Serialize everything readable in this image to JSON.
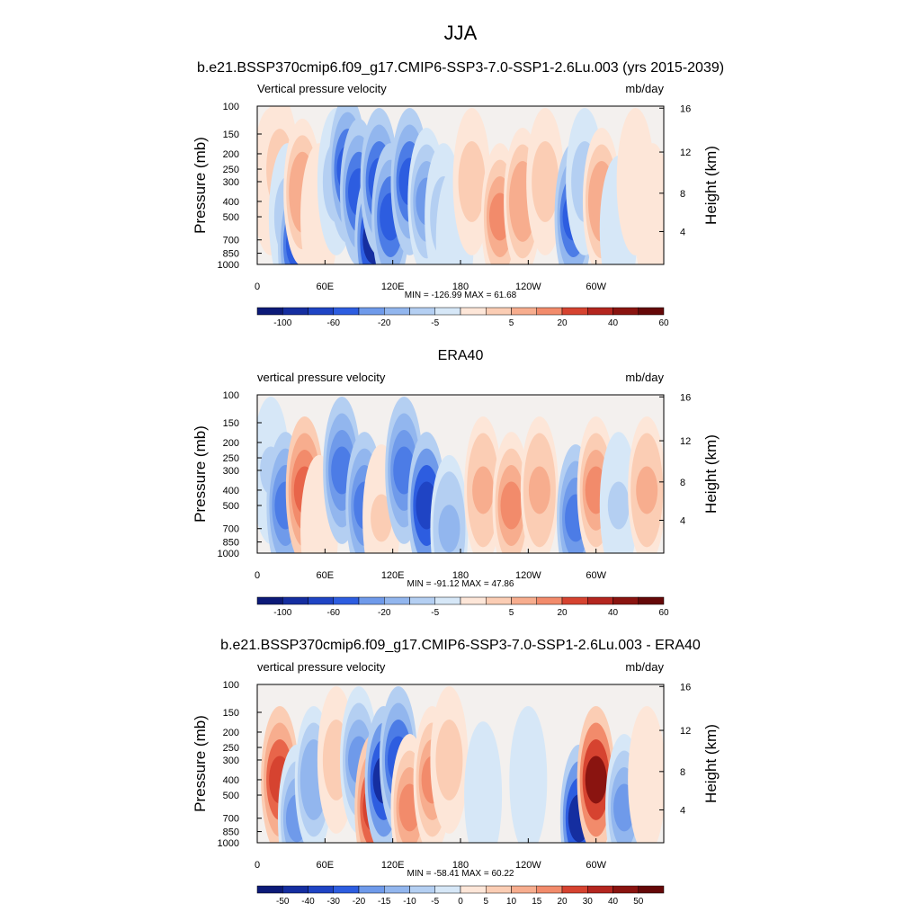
{
  "figure": {
    "title": "JJA"
  },
  "cbar_warm": [
    "#fde6d8",
    "#fbcdb4",
    "#f7ad8e",
    "#f28b6b",
    "#e8654a",
    "#d64330",
    "#b4261f",
    "#8a1410",
    "#650808"
  ],
  "cbar_cool": [
    "#d6e7f7",
    "#b4cff2",
    "#92b6ee",
    "#6f9aea",
    "#4c7ce6",
    "#2d5de0",
    "#1f44c4",
    "#152ea0",
    "#0c1a78"
  ],
  "chart_data": [
    {
      "type": "heatmap",
      "title": "b.e21.BSSP370cmip6.f09_g17.CMIP6-SSP3-7.0-SSP1-2.6Lu.003 (yrs 2015-2039)",
      "left_label": "Vertical pressure velocity",
      "right_label": "mb/day",
      "ylabel": "Pressure (mb)",
      "ylabel_right": "Height (km)",
      "yticks": [
        "100",
        "150",
        "200",
        "250",
        "300",
        "400",
        "500",
        "700",
        "850",
        "1000"
      ],
      "yticks_right": [
        "16",
        "12",
        "8",
        "4"
      ],
      "xticks": [
        "0",
        "60E",
        "120E",
        "180",
        "120W",
        "60W"
      ],
      "ylim": [
        1000,
        100
      ],
      "xlim": [
        0,
        360
      ],
      "stats": "MIN = -126.99  MAX =  61.68",
      "colorbar_labels": [
        "-100",
        "-60",
        "-20",
        "-5",
        "5",
        "20",
        "40",
        "60"
      ],
      "cells": [
        {
          "lon": 12,
          "p": 300,
          "v": 10
        },
        {
          "lon": 20,
          "p": 250,
          "v": 15
        },
        {
          "lon": 27,
          "p": 500,
          "v": -20
        },
        {
          "lon": 35,
          "p": 750,
          "v": -60
        },
        {
          "lon": 40,
          "p": 350,
          "v": 30
        },
        {
          "lon": 55,
          "p": 500,
          "v": 5
        },
        {
          "lon": 70,
          "p": 300,
          "v": -20
        },
        {
          "lon": 80,
          "p": 250,
          "v": -60
        },
        {
          "lon": 90,
          "p": 350,
          "v": -60
        },
        {
          "lon": 103,
          "p": 700,
          "v": -80
        },
        {
          "lon": 108,
          "p": 300,
          "v": -60
        },
        {
          "lon": 118,
          "p": 500,
          "v": -60
        },
        {
          "lon": 135,
          "p": 300,
          "v": -60
        },
        {
          "lon": 150,
          "p": 400,
          "v": -40
        },
        {
          "lon": 165,
          "p": 500,
          "v": -20
        },
        {
          "lon": 175,
          "p": 700,
          "v": -10
        },
        {
          "lon": 190,
          "p": 300,
          "v": 20
        },
        {
          "lon": 215,
          "p": 500,
          "v": 40
        },
        {
          "lon": 235,
          "p": 400,
          "v": 30
        },
        {
          "lon": 255,
          "p": 300,
          "v": 20
        },
        {
          "lon": 280,
          "p": 500,
          "v": -60
        },
        {
          "lon": 290,
          "p": 300,
          "v": -20
        },
        {
          "lon": 305,
          "p": 400,
          "v": 30
        },
        {
          "lon": 320,
          "p": 600,
          "v": -10
        },
        {
          "lon": 335,
          "p": 300,
          "v": 10
        },
        {
          "lon": 350,
          "p": 500,
          "v": 5
        }
      ]
    },
    {
      "type": "heatmap",
      "title": "ERA40",
      "left_label": "vertical pressure velocity",
      "right_label": "mb/day",
      "ylabel": "Pressure (mb)",
      "ylabel_right": "Height (km)",
      "yticks": [
        "100",
        "150",
        "200",
        "250",
        "300",
        "400",
        "500",
        "700",
        "850",
        "1000"
      ],
      "yticks_right": [
        "16",
        "12",
        "8",
        "4"
      ],
      "xticks": [
        "0",
        "60E",
        "120E",
        "180",
        "120W",
        "60W"
      ],
      "ylim": [
        1000,
        100
      ],
      "xlim": [
        0,
        360
      ],
      "stats": "MIN = -91.12  MAX =  47.86",
      "colorbar_labels": [
        "-100",
        "-60",
        "-20",
        "-5",
        "5",
        "20",
        "40",
        "60"
      ],
      "cells": [
        {
          "lon": 12,
          "p": 300,
          "v": -10
        },
        {
          "lon": 25,
          "p": 500,
          "v": -40
        },
        {
          "lon": 42,
          "p": 400,
          "v": 40
        },
        {
          "lon": 55,
          "p": 700,
          "v": 5
        },
        {
          "lon": 75,
          "p": 300,
          "v": -40
        },
        {
          "lon": 95,
          "p": 500,
          "v": -40
        },
        {
          "lon": 110,
          "p": 600,
          "v": 10
        },
        {
          "lon": 130,
          "p": 300,
          "v": -40
        },
        {
          "lon": 150,
          "p": 500,
          "v": -60
        },
        {
          "lon": 170,
          "p": 700,
          "v": -20
        },
        {
          "lon": 200,
          "p": 400,
          "v": 20
        },
        {
          "lon": 225,
          "p": 500,
          "v": 30
        },
        {
          "lon": 250,
          "p": 400,
          "v": 20
        },
        {
          "lon": 282,
          "p": 600,
          "v": -40
        },
        {
          "lon": 300,
          "p": 400,
          "v": 30
        },
        {
          "lon": 320,
          "p": 500,
          "v": -10
        },
        {
          "lon": 345,
          "p": 400,
          "v": 20
        }
      ]
    },
    {
      "type": "heatmap",
      "title": "b.e21.BSSP370cmip6.f09_g17.CMIP6-SSP3-7.0-SSP1-2.6Lu.003 - ERA40",
      "left_label": "vertical pressure velocity",
      "right_label": "mb/day",
      "ylabel": "Pressure (mb)",
      "ylabel_right": "Height (km)",
      "yticks": [
        "100",
        "150",
        "200",
        "250",
        "300",
        "400",
        "500",
        "700",
        "850",
        "1000"
      ],
      "yticks_right": [
        "16",
        "12",
        "8",
        "4"
      ],
      "xticks": [
        "0",
        "60E",
        "120E",
        "180",
        "120W",
        "60W"
      ],
      "ylim": [
        1000,
        100
      ],
      "xlim": [
        0,
        360
      ],
      "stats": "MIN = -58.41  MAX =  60.22",
      "colorbar_labels": [
        "-50",
        "-40",
        "-30",
        "-20",
        "-15",
        "-10",
        "-5",
        "0",
        "5",
        "10",
        "15",
        "20",
        "30",
        "40",
        "50"
      ],
      "cells": [
        {
          "lon": 20,
          "p": 400,
          "v": 30
        },
        {
          "lon": 35,
          "p": 700,
          "v": -20
        },
        {
          "lon": 50,
          "p": 400,
          "v": -15
        },
        {
          "lon": 70,
          "p": 300,
          "v": 10
        },
        {
          "lon": 90,
          "p": 300,
          "v": -20
        },
        {
          "lon": 103,
          "p": 600,
          "v": 30
        },
        {
          "lon": 112,
          "p": 400,
          "v": -40
        },
        {
          "lon": 125,
          "p": 300,
          "v": -30
        },
        {
          "lon": 135,
          "p": 600,
          "v": 20
        },
        {
          "lon": 155,
          "p": 400,
          "v": 20
        },
        {
          "lon": 170,
          "p": 300,
          "v": 10
        },
        {
          "lon": 200,
          "p": 500,
          "v": -5
        },
        {
          "lon": 240,
          "p": 400,
          "v": -5
        },
        {
          "lon": 285,
          "p": 700,
          "v": -40
        },
        {
          "lon": 300,
          "p": 400,
          "v": 40
        },
        {
          "lon": 325,
          "p": 600,
          "v": -20
        },
        {
          "lon": 345,
          "p": 400,
          "v": 5
        }
      ]
    }
  ]
}
